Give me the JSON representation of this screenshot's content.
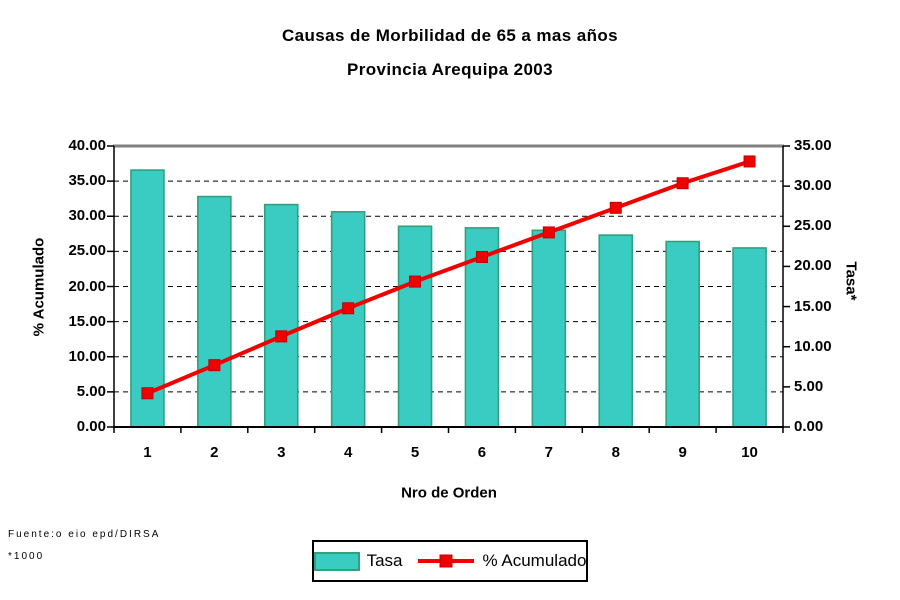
{
  "chart_data": {
    "type": "bar",
    "combo": "pareto (bars + cumulative line)",
    "title": "Causas de Morbilidad de 65 a mas años",
    "subtitle": "Provincia Arequipa 2003",
    "xlabel": "Nro de Orden",
    "categories": [
      "1",
      "2",
      "3",
      "4",
      "5",
      "6",
      "7",
      "8",
      "9",
      "10"
    ],
    "left_axis": {
      "label": "% Acumulado",
      "min": 0,
      "max": 40,
      "step": 5,
      "tick_labels": [
        "0.00",
        "5.00",
        "10.00",
        "15.00",
        "20.00",
        "25.00",
        "30.00",
        "35.00",
        "40.00"
      ]
    },
    "right_axis": {
      "label": "Tasa*",
      "min": 0,
      "max": 35,
      "step": 5,
      "tick_labels": [
        "0.00",
        "5.00",
        "10.00",
        "15.00",
        "20.00",
        "25.00",
        "30.00",
        "35.00"
      ]
    },
    "series": [
      {
        "name": "Tasa",
        "type": "bar",
        "axis": "right",
        "fill": "#3ACCC2",
        "stroke": "#2FA17B",
        "values": [
          32.0,
          28.7,
          27.7,
          26.8,
          25.0,
          24.8,
          24.5,
          23.9,
          23.1,
          22.3
        ]
      },
      {
        "name": "% Acumulado",
        "type": "line",
        "axis": "left",
        "color": "#F20000",
        "marker": "square",
        "marker_border": "#C00000",
        "values": [
          4.8,
          8.8,
          12.9,
          16.9,
          20.7,
          24.2,
          27.7,
          31.2,
          34.7,
          37.8
        ]
      }
    ],
    "grid": {
      "horizontal": true,
      "style": "dashed",
      "color": "#000000"
    },
    "plot_border_top_color": "#808080",
    "legend_position": "bottom-center"
  },
  "legend": {
    "items": [
      {
        "label": "Tasa",
        "swatch": "bar-swatch"
      },
      {
        "label": "% Acumulado",
        "swatch": "line-marker-swatch"
      }
    ]
  },
  "footer": {
    "source": "Fuente:o eio epd/DIRSA",
    "note": "*1000"
  }
}
